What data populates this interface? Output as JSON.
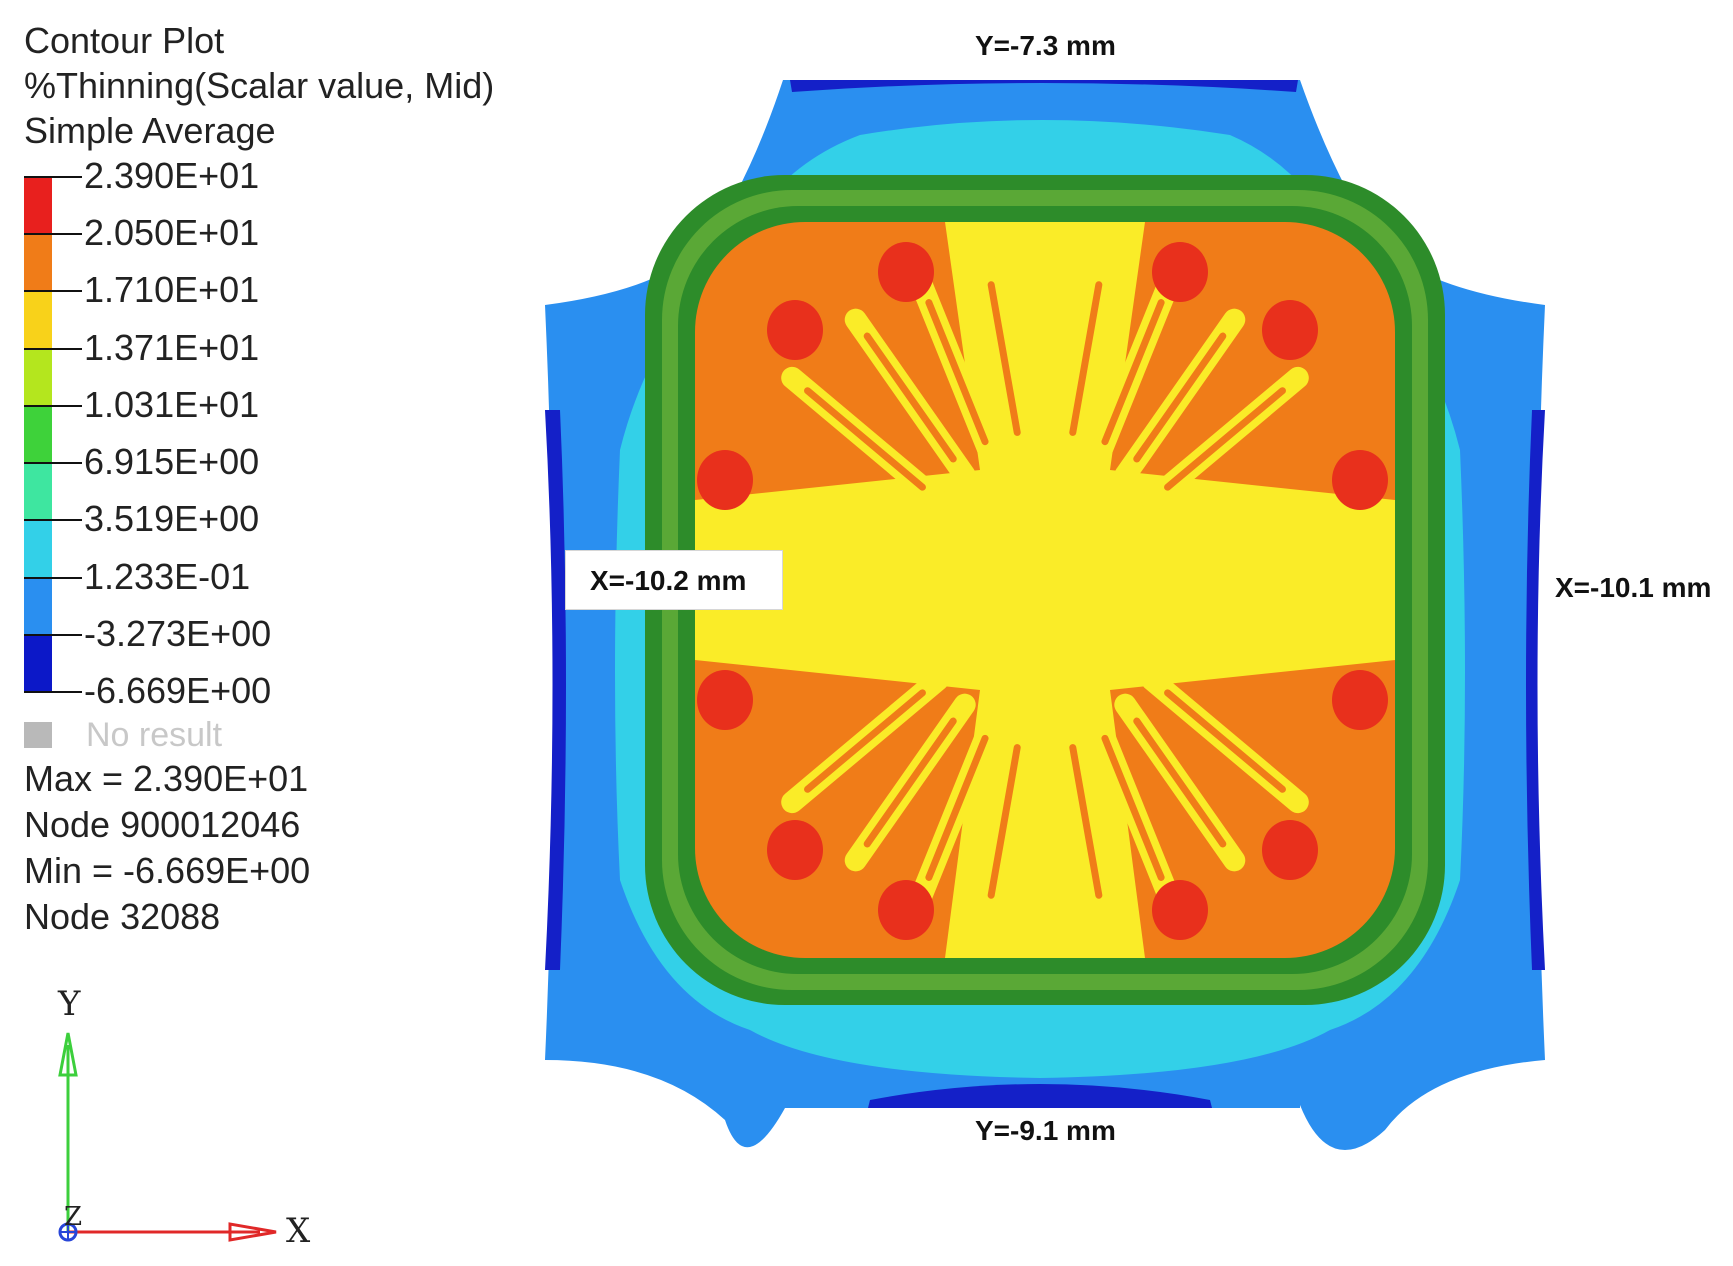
{
  "legend": {
    "title": "Contour Plot",
    "subtitle": "%Thinning(Scalar value, Mid)",
    "average": "Simple Average",
    "levels": [
      "2.390E+01",
      "2.050E+01",
      "1.710E+01",
      "1.371E+01",
      "1.031E+01",
      "6.915E+00",
      "3.519E+00",
      "1.233E-01",
      "-3.273E+00",
      "-6.669E+00"
    ],
    "band_colors": [
      "#e8201e",
      "#f07c18",
      "#f8d21a",
      "#b4e61e",
      "#3ed23a",
      "#3ee6a0",
      "#33d0e8",
      "#2a8ff0",
      "#0c18c8"
    ],
    "no_result": "No result"
  },
  "stats": {
    "max": "Max = 2.390E+01",
    "max_node": "Node 900012046",
    "min": "Min = -6.669E+00",
    "min_node": "Node 32088"
  },
  "axes": {
    "y": "Y",
    "z": "Z",
    "x": "X"
  },
  "dimensions": {
    "top": "Y=-7.3 mm",
    "bottom": "Y=-9.1 mm",
    "left": "X=-10.2 mm",
    "right": "X=-10.1 mm"
  },
  "plot_colors": {
    "deep_blue": "#1420c8",
    "blue": "#2a8ff0",
    "cyan": "#33d0e8",
    "green": "#2d8c2a",
    "orange": "#f07c18",
    "red": "#e8301c",
    "yellow": "#faec28"
  }
}
